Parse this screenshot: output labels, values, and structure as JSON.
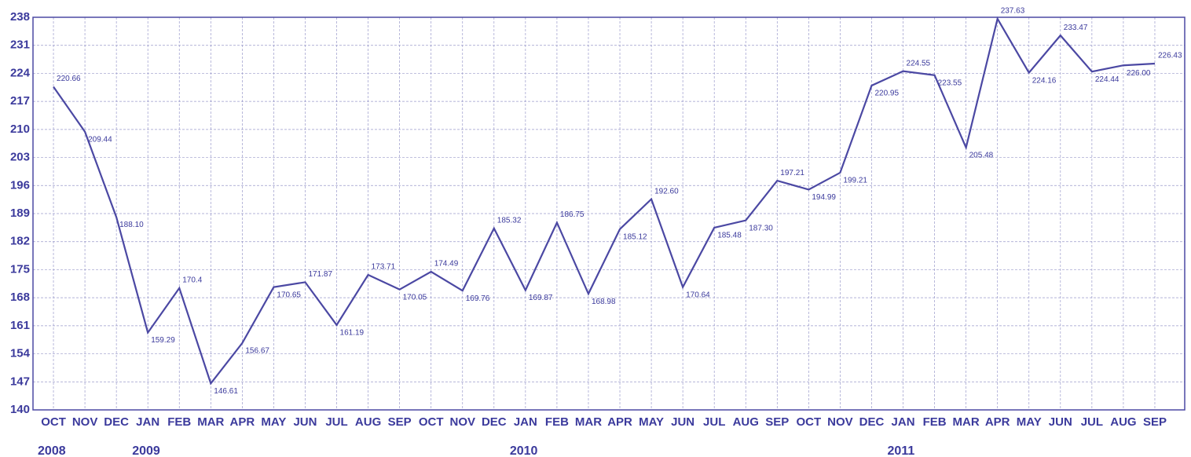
{
  "chart_data": {
    "type": "line",
    "categories": [
      "OCT",
      "NOV",
      "DEC",
      "JAN",
      "FEB",
      "MAR",
      "APR",
      "MAY",
      "JUN",
      "JUL",
      "AUG",
      "SEP",
      "OCT",
      "NOV",
      "DEC",
      "JAN",
      "FEB",
      "MAR",
      "APR",
      "MAY",
      "JUN",
      "JUL",
      "AUG",
      "SEP",
      "OCT",
      "NOV",
      "DEC",
      "JAN",
      "FEB",
      "MAR",
      "APR",
      "MAY",
      "JUN",
      "JUL",
      "AUG",
      "SEP"
    ],
    "year_labels": [
      "2008",
      "2009",
      "2010",
      "2011"
    ],
    "year_starts": [
      0,
      3,
      15,
      27
    ],
    "series": [
      {
        "color": "#4b48a3",
        "values": [
          220.66,
          209.44,
          188.1,
          159.29,
          170.4,
          146.61,
          156.67,
          170.65,
          171.87,
          161.19,
          173.71,
          170.05,
          174.49,
          169.76,
          185.32,
          169.87,
          186.75,
          168.98,
          185.12,
          192.6,
          170.64,
          185.48,
          187.3,
          197.21,
          194.99,
          199.21,
          220.95,
          224.55,
          223.55,
          205.48,
          237.63,
          224.16,
          233.47,
          224.44,
          226.0,
          226.43
        ],
        "value_labels": [
          "220.66",
          "209.44",
          "188.10",
          "159.29",
          "170.4",
          "146.61",
          "156.67",
          "170.65",
          "171.87",
          "161.19",
          "173.71",
          "170.05",
          "174.49",
          "169.76",
          "185.32",
          "169.87",
          "186.75",
          "168.98",
          "185.12",
          "192.60",
          "170.64",
          "185.48",
          "187.30",
          "197.21",
          "194.99",
          "199.21",
          "220.95",
          "224.55",
          "223.55",
          "205.48",
          "237.63",
          "224.16",
          "233.47",
          "224.44",
          "226.00",
          "226.43"
        ]
      }
    ],
    "ylim": [
      140,
      238
    ],
    "yticks": [
      140,
      147,
      154,
      161,
      168,
      175,
      182,
      189,
      196,
      203,
      210,
      217,
      224,
      231,
      238
    ],
    "grid": true
  }
}
